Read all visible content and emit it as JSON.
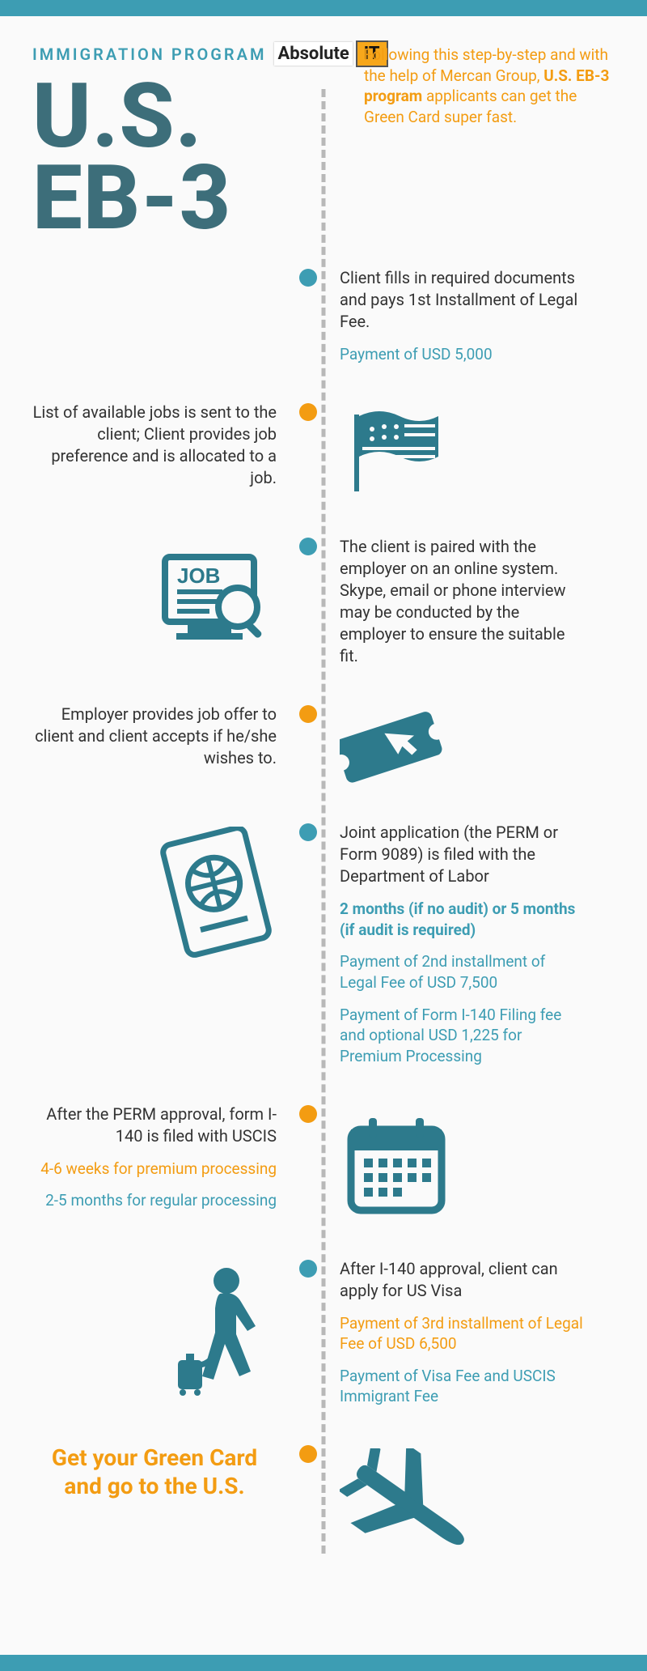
{
  "colors": {
    "teal": "#3d9db3",
    "deep_teal": "#2d7a8c",
    "heading_teal": "#3d6e7a",
    "orange": "#f39c12",
    "body": "#333333",
    "dash": "#b8b8b8",
    "bg": "#fafafa"
  },
  "header": {
    "eyebrow": "IMMIGRATION PROGRAM",
    "logo": {
      "absolute": "Absolute",
      "it": "IT"
    },
    "intro_prefix": "Following this step-by-step and with the help of Mercan Group, ",
    "intro_bold": "U.S. EB-3 program",
    "intro_suffix": " applicants can get the Green Card super fast.",
    "title_l1": "U.S.",
    "title_l2": "EB-3"
  },
  "steps": [
    {
      "dot": "teal",
      "side": "right",
      "icon": "none",
      "text": "Client fills in required documents and pays 1st Installment of Legal Fee.",
      "notes": [
        {
          "style": "teal",
          "text": "Payment of USD 5,000"
        }
      ]
    },
    {
      "dot": "orange",
      "side": "left",
      "icon": "flag",
      "text": "List of available jobs is sent to the client; Client provides job preference and is allocated to a job."
    },
    {
      "dot": "teal",
      "side": "right",
      "icon": "jobsearch",
      "text": "The client is paired with the employer on an online system. Skype, email or phone interview may be conducted by the employer to ensure the suitable fit."
    },
    {
      "dot": "orange",
      "side": "left",
      "icon": "ticket",
      "text": "Employer provides job offer to client and client accepts if he/she wishes to."
    },
    {
      "dot": "teal",
      "side": "right",
      "icon": "passport",
      "text": "Joint application (the PERM or Form 9089) is filed with the Department of Labor",
      "notes": [
        {
          "style": "teal bold",
          "text": "2 months (if no audit) or 5 months (if audit is required)"
        },
        {
          "style": "teal",
          "text": "Payment of 2nd installment of Legal Fee of USD 7,500"
        },
        {
          "style": "teal",
          "text": "Payment of Form I-140 Filing fee and optional USD 1,225 for Premium Processing"
        }
      ]
    },
    {
      "dot": "orange",
      "side": "left",
      "icon": "calendar",
      "text": "After the PERM approval, form I-140 is filed with USCIS",
      "notes": [
        {
          "style": "orange",
          "text": "4-6 weeks for premium processing"
        },
        {
          "style": "teal",
          "text": "2-5 months for regular processing"
        }
      ]
    },
    {
      "dot": "teal",
      "side": "right",
      "icon": "traveler",
      "text": "After I-140 approval, client can apply for US Visa",
      "notes": [
        {
          "style": "orange",
          "text": "Payment of 3rd installment of Legal Fee of USD 6,500"
        },
        {
          "style": "teal",
          "text": "Payment of Visa Fee and USCIS Immigrant Fee"
        }
      ]
    }
  ],
  "final": {
    "dot": "orange",
    "text": "Get your Green Card and go to the U.S.",
    "icon": "plane"
  }
}
